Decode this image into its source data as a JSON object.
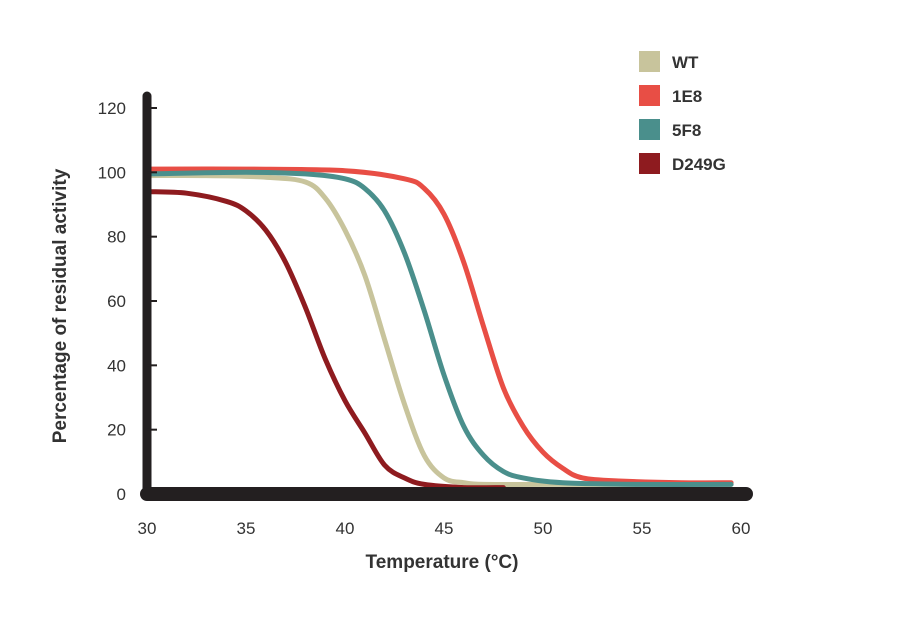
{
  "chart_data": {
    "type": "line",
    "title": "",
    "xlabel": "Temperature (°C)",
    "ylabel": "Percentage of residual activity",
    "xlim": [
      30,
      60
    ],
    "ylim": [
      0,
      120
    ],
    "xticks": [
      30,
      35,
      40,
      45,
      50,
      55,
      60
    ],
    "yticks": [
      0,
      20,
      40,
      60,
      80,
      100,
      120
    ],
    "grid": false,
    "legend_position": "top-right",
    "series": [
      {
        "name": "WT",
        "color": "#c8c49c",
        "x": [
          30,
          33,
          36,
          38,
          39,
          40,
          41,
          42,
          43,
          44,
          45,
          46,
          47,
          50,
          55,
          59.5
        ],
        "y": [
          99,
          99,
          98.5,
          97,
          92,
          82,
          68,
          48,
          28,
          12,
          5,
          3.5,
          3,
          3,
          3,
          3
        ]
      },
      {
        "name": "1E8",
        "color": "#e84e45",
        "x": [
          30,
          35,
          40,
          43,
          44,
          45,
          46,
          47,
          48,
          49,
          50,
          51,
          52,
          54,
          57,
          59.5
        ],
        "y": [
          101,
          101,
          100.5,
          98,
          95,
          87,
          72,
          52,
          33,
          21,
          13,
          8,
          5,
          4,
          3.5,
          3.5
        ]
      },
      {
        "name": "5F8",
        "color": "#4a8f8c",
        "x": [
          30,
          35,
          38,
          40,
          41,
          42,
          43,
          44,
          45,
          46,
          47,
          48,
          49,
          51,
          55,
          59.5
        ],
        "y": [
          99.5,
          100,
          99.5,
          98,
          95,
          88,
          75,
          57,
          37,
          21,
          12,
          7,
          5,
          3.5,
          3,
          3
        ]
      },
      {
        "name": "D249G",
        "color": "#8e1b1f",
        "x": [
          30,
          32,
          34,
          35,
          36,
          37,
          38,
          39,
          40,
          41,
          42,
          43,
          44,
          46,
          48
        ],
        "y": [
          94,
          93.5,
          91,
          88,
          82,
          72,
          58,
          42,
          29,
          19,
          9,
          5,
          3,
          2,
          2
        ]
      }
    ]
  }
}
